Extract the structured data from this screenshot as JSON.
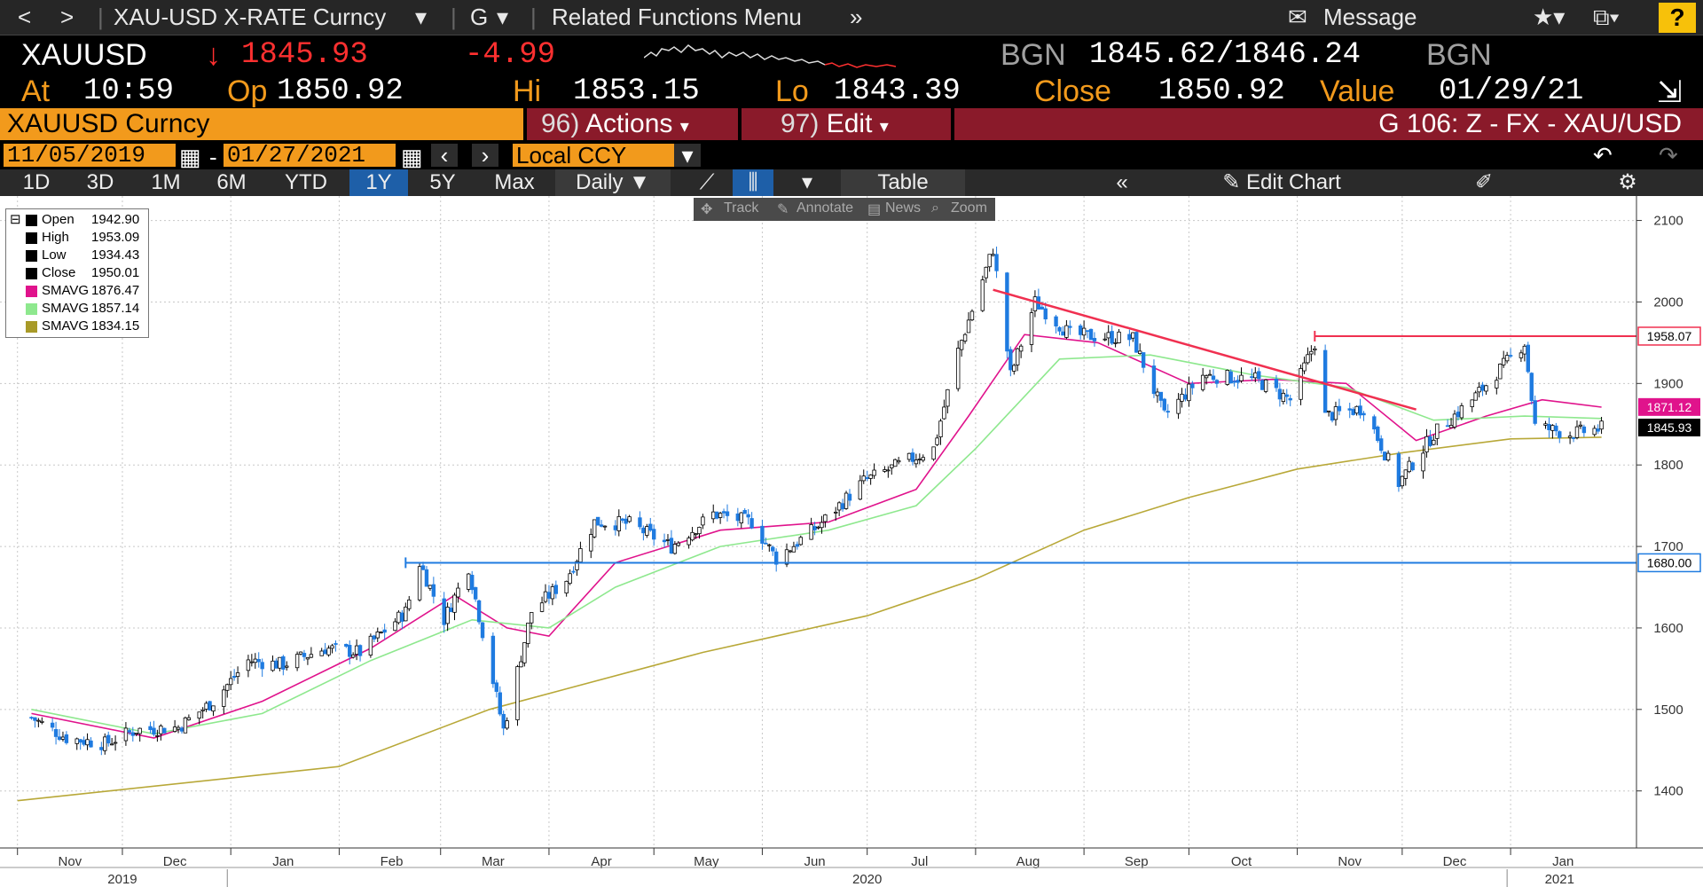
{
  "nav": {
    "back": "<",
    "forward": ">",
    "security": "XAU-USD X-RATE Curncy",
    "function": "G",
    "related": "Related Functions Menu",
    "message": "Message",
    "help": "?"
  },
  "quote": {
    "ticker": "XAUUSD",
    "last": "1845.93",
    "change": "-4.99",
    "source": "BGN",
    "bid_ask": "1845.62/1846.24",
    "source2": "BGN",
    "at_label": "At",
    "time": "10:59",
    "op_label": "Op",
    "open": "1850.92",
    "hi_label": "Hi",
    "high": "1853.15",
    "lo_label": "Lo",
    "low": "1843.39",
    "close_label": "Close",
    "close": "1850.92",
    "value_label": "Value",
    "value_date": "01/29/21"
  },
  "command": {
    "security": "XAUUSD Curncy",
    "actions_num": "96)",
    "actions": "Actions",
    "edit_num": "97)",
    "edit": "Edit",
    "chart_title": "G 106: Z - FX - XAU/USD"
  },
  "dates": {
    "start": "11/05/2019",
    "end": "01/27/2021",
    "currency": "Local CCY"
  },
  "timeframes": [
    "1D",
    "3D",
    "1M",
    "6M",
    "YTD",
    "1Y",
    "5Y",
    "Max"
  ],
  "active_timeframe": "1Y",
  "toolbar": {
    "period": "Daily",
    "table": "Table",
    "edit_chart": "Edit Chart"
  },
  "chart_tools": [
    "Track",
    "Annotate",
    "News",
    "Zoom"
  ],
  "legend": [
    {
      "name": "Open",
      "value": "1942.90",
      "color": "#000000"
    },
    {
      "name": "High",
      "value": "1953.09",
      "color": "#000000"
    },
    {
      "name": "Low",
      "value": "1934.43",
      "color": "#000000"
    },
    {
      "name": "Close",
      "value": "1950.01",
      "color": "#000000"
    },
    {
      "name": "SMAVG",
      "value": "1876.47",
      "color": "#e0138c"
    },
    {
      "name": "SMAVG",
      "value": "1857.14",
      "color": "#8ee88e"
    },
    {
      "name": "SMAVG",
      "value": "1834.15",
      "color": "#a89a28"
    }
  ],
  "colors": {
    "accent": "#f29a1c",
    "up": "#000000",
    "down": "#1f7be0",
    "sma_fast": "#e0138c",
    "sma_mid": "#8ee88e",
    "sma_slow": "#b8a838",
    "trendline": "#f03050",
    "hline_blue": "#1f7be0"
  },
  "chart_data": {
    "type": "line",
    "ylim": [
      1330,
      2130
    ],
    "yticks": [
      1400,
      1500,
      1600,
      1700,
      1800,
      1900,
      2000,
      2100
    ],
    "months": [
      {
        "label": "Nov",
        "date": "2019-11-01"
      },
      {
        "label": "Dec",
        "date": "2019-12-01"
      },
      {
        "label": "Jan",
        "date": "2020-01-01"
      },
      {
        "label": "Feb",
        "date": "2020-02-01"
      },
      {
        "label": "Mar",
        "date": "2020-03-01"
      },
      {
        "label": "Apr",
        "date": "2020-04-01"
      },
      {
        "label": "May",
        "date": "2020-05-01"
      },
      {
        "label": "Jun",
        "date": "2020-06-01"
      },
      {
        "label": "Jul",
        "date": "2020-07-01"
      },
      {
        "label": "Aug",
        "date": "2020-08-01"
      },
      {
        "label": "Sep",
        "date": "2020-09-01"
      },
      {
        "label": "Oct",
        "date": "2020-10-01"
      },
      {
        "label": "Nov",
        "date": "2020-11-01"
      },
      {
        "label": "Dec",
        "date": "2020-12-01"
      },
      {
        "label": "Jan",
        "date": "2021-01-01"
      }
    ],
    "years": [
      {
        "label": "2019",
        "date": "2019-12-01"
      },
      {
        "label": "2020",
        "date": "2020-07-01"
      },
      {
        "label": "2021",
        "date": "2021-01-15"
      }
    ],
    "price_series": [
      {
        "date": "2019-11-05",
        "value": 1490
      },
      {
        "date": "2019-11-15",
        "value": 1465
      },
      {
        "date": "2019-11-26",
        "value": 1458
      },
      {
        "date": "2019-12-05",
        "value": 1475
      },
      {
        "date": "2019-12-17",
        "value": 1478
      },
      {
        "date": "2019-12-27",
        "value": 1510
      },
      {
        "date": "2020-01-06",
        "value": 1560
      },
      {
        "date": "2020-01-16",
        "value": 1555
      },
      {
        "date": "2020-01-28",
        "value": 1575
      },
      {
        "date": "2020-02-07",
        "value": 1570
      },
      {
        "date": "2020-02-20",
        "value": 1620
      },
      {
        "date": "2020-02-24",
        "value": 1680
      },
      {
        "date": "2020-03-02",
        "value": 1610
      },
      {
        "date": "2020-03-09",
        "value": 1675
      },
      {
        "date": "2020-03-19",
        "value": 1475
      },
      {
        "date": "2020-03-27",
        "value": 1620
      },
      {
        "date": "2020-04-06",
        "value": 1660
      },
      {
        "date": "2020-04-14",
        "value": 1730
      },
      {
        "date": "2020-04-24",
        "value": 1728
      },
      {
        "date": "2020-05-06",
        "value": 1700
      },
      {
        "date": "2020-05-18",
        "value": 1740
      },
      {
        "date": "2020-05-29",
        "value": 1730
      },
      {
        "date": "2020-06-05",
        "value": 1685
      },
      {
        "date": "2020-06-17",
        "value": 1725
      },
      {
        "date": "2020-06-30",
        "value": 1780
      },
      {
        "date": "2020-07-10",
        "value": 1800
      },
      {
        "date": "2020-07-20",
        "value": 1820
      },
      {
        "date": "2020-07-27",
        "value": 1940
      },
      {
        "date": "2020-08-06",
        "value": 2065
      },
      {
        "date": "2020-08-11",
        "value": 1910
      },
      {
        "date": "2020-08-18",
        "value": 2000
      },
      {
        "date": "2020-08-28",
        "value": 1960
      },
      {
        "date": "2020-09-15",
        "value": 1955
      },
      {
        "date": "2020-09-24",
        "value": 1860
      },
      {
        "date": "2020-10-05",
        "value": 1910
      },
      {
        "date": "2020-10-20",
        "value": 1905
      },
      {
        "date": "2020-10-30",
        "value": 1880
      },
      {
        "date": "2020-11-06",
        "value": 1950
      },
      {
        "date": "2020-11-09",
        "value": 1860
      },
      {
        "date": "2020-11-20",
        "value": 1870
      },
      {
        "date": "2020-11-30",
        "value": 1778
      },
      {
        "date": "2020-12-10",
        "value": 1838
      },
      {
        "date": "2020-12-21",
        "value": 1880
      },
      {
        "date": "2021-01-05",
        "value": 1950
      },
      {
        "date": "2021-01-08",
        "value": 1848
      },
      {
        "date": "2021-01-18",
        "value": 1838
      },
      {
        "date": "2021-01-27",
        "value": 1845
      }
    ],
    "series": [
      {
        "name": "SMAVG",
        "color": "#e0138c",
        "points": [
          {
            "date": "2019-11-05",
            "value": 1495
          },
          {
            "date": "2019-12-10",
            "value": 1465
          },
          {
            "date": "2020-01-10",
            "value": 1510
          },
          {
            "date": "2020-02-10",
            "value": 1575
          },
          {
            "date": "2020-03-05",
            "value": 1640
          },
          {
            "date": "2020-03-20",
            "value": 1600
          },
          {
            "date": "2020-04-01",
            "value": 1590
          },
          {
            "date": "2020-04-20",
            "value": 1680
          },
          {
            "date": "2020-05-20",
            "value": 1720
          },
          {
            "date": "2020-06-20",
            "value": 1730
          },
          {
            "date": "2020-07-15",
            "value": 1770
          },
          {
            "date": "2020-07-30",
            "value": 1860
          },
          {
            "date": "2020-08-15",
            "value": 1960
          },
          {
            "date": "2020-09-05",
            "value": 1950
          },
          {
            "date": "2020-10-01",
            "value": 1900
          },
          {
            "date": "2020-10-25",
            "value": 1905
          },
          {
            "date": "2020-11-15",
            "value": 1900
          },
          {
            "date": "2020-12-05",
            "value": 1830
          },
          {
            "date": "2020-12-25",
            "value": 1860
          },
          {
            "date": "2021-01-10",
            "value": 1880
          },
          {
            "date": "2021-01-27",
            "value": 1871
          }
        ]
      },
      {
        "name": "SMAVG",
        "color": "#8ee88e",
        "points": [
          {
            "date": "2019-11-05",
            "value": 1500
          },
          {
            "date": "2019-12-10",
            "value": 1470
          },
          {
            "date": "2020-01-10",
            "value": 1495
          },
          {
            "date": "2020-02-10",
            "value": 1560
          },
          {
            "date": "2020-03-10",
            "value": 1610
          },
          {
            "date": "2020-04-01",
            "value": 1600
          },
          {
            "date": "2020-04-20",
            "value": 1650
          },
          {
            "date": "2020-05-20",
            "value": 1700
          },
          {
            "date": "2020-06-20",
            "value": 1720
          },
          {
            "date": "2020-07-15",
            "value": 1750
          },
          {
            "date": "2020-08-01",
            "value": 1820
          },
          {
            "date": "2020-08-25",
            "value": 1930
          },
          {
            "date": "2020-09-20",
            "value": 1935
          },
          {
            "date": "2020-10-20",
            "value": 1910
          },
          {
            "date": "2020-11-15",
            "value": 1895
          },
          {
            "date": "2020-12-10",
            "value": 1855
          },
          {
            "date": "2021-01-05",
            "value": 1860
          },
          {
            "date": "2021-01-27",
            "value": 1857
          }
        ]
      },
      {
        "name": "SMAVG",
        "color": "#b8a838",
        "points": [
          {
            "date": "2019-11-01",
            "value": 1388
          },
          {
            "date": "2020-02-01",
            "value": 1430
          },
          {
            "date": "2020-03-15",
            "value": 1500
          },
          {
            "date": "2020-05-15",
            "value": 1570
          },
          {
            "date": "2020-07-01",
            "value": 1615
          },
          {
            "date": "2020-08-01",
            "value": 1660
          },
          {
            "date": "2020-09-01",
            "value": 1720
          },
          {
            "date": "2020-10-01",
            "value": 1760
          },
          {
            "date": "2020-11-01",
            "value": 1795
          },
          {
            "date": "2020-12-01",
            "value": 1815
          },
          {
            "date": "2021-01-01",
            "value": 1832
          },
          {
            "date": "2021-01-27",
            "value": 1834
          }
        ]
      }
    ],
    "annotations": [
      {
        "kind": "trendline",
        "color": "#f03050",
        "from": {
          "date": "2020-08-06",
          "value": 2015
        },
        "to": {
          "date": "2020-12-05",
          "value": 1868
        }
      },
      {
        "kind": "hline",
        "color": "#f03050",
        "from_date": "2020-11-06",
        "value": 1958.07,
        "label": "1958.07"
      },
      {
        "kind": "hline",
        "color": "#1f7be0",
        "from_date": "2020-02-20",
        "value": 1680.0,
        "label": "1680.00"
      }
    ],
    "price_labels": [
      {
        "value": 1871.12,
        "label": "1871.12",
        "bg": "#e0138c",
        "fg": "#ffffff"
      },
      {
        "value": 1845.93,
        "label": "1845.93",
        "bg": "#000000",
        "fg": "#ffffff"
      }
    ]
  }
}
